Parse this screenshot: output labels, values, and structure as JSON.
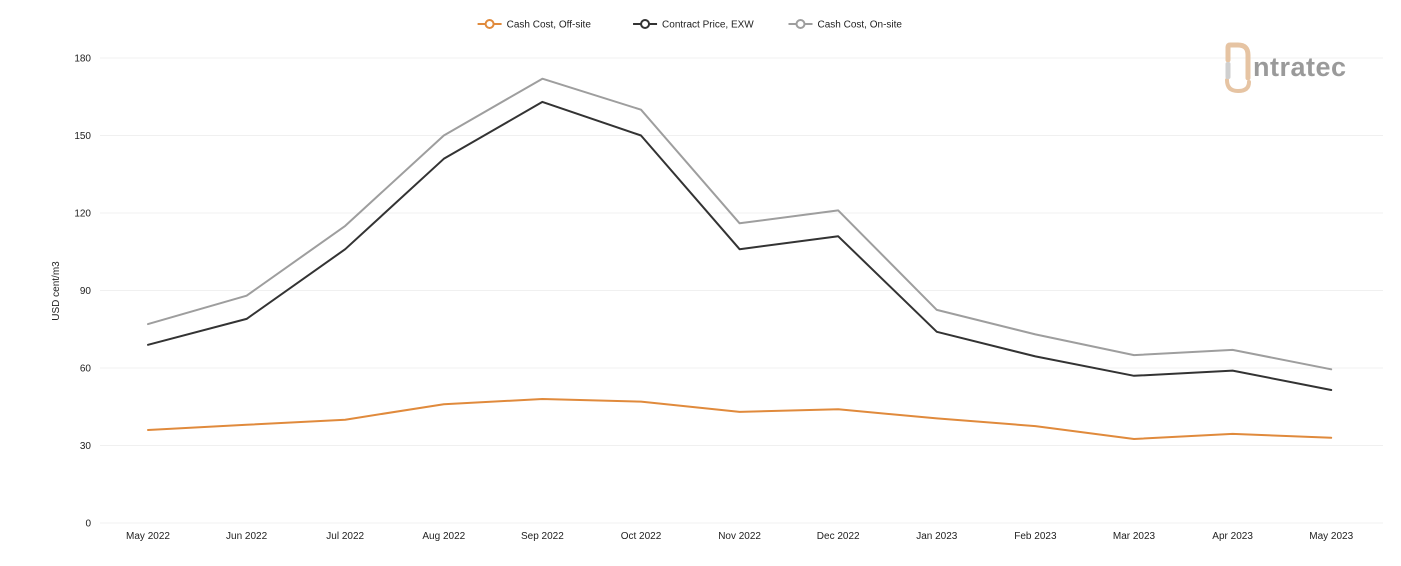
{
  "chart_data": {
    "type": "line",
    "title": "",
    "xlabel": "",
    "ylabel": "USD cent/m3",
    "ylim": [
      0,
      180
    ],
    "yticks": [
      0,
      30,
      60,
      90,
      120,
      150,
      180
    ],
    "grid": true,
    "legend_position": "top-center",
    "categories": [
      "May 2022",
      "Jun 2022",
      "Jul 2022",
      "Aug 2022",
      "Sep 2022",
      "Oct 2022",
      "Nov 2022",
      "Dec 2022",
      "Jan 2023",
      "Feb 2023",
      "Mar 2023",
      "Apr 2023",
      "May 2023"
    ],
    "series": [
      {
        "name": "Cash Cost, Off-site",
        "color": "#e08a3c",
        "values": [
          36,
          38,
          40,
          46,
          48,
          47,
          43,
          44,
          40.5,
          37.5,
          32.5,
          34.5,
          33
        ]
      },
      {
        "name": "Contract Price, EXW",
        "color": "#333333",
        "values": [
          69,
          79,
          106,
          141,
          163,
          150,
          106,
          111,
          74,
          64.5,
          57,
          59,
          51.5
        ]
      },
      {
        "name": "Cash Cost, On-site",
        "color": "#9e9e9e",
        "values": [
          77,
          88,
          115,
          150,
          172,
          160,
          116,
          121,
          82.5,
          73,
          65,
          67,
          59.5
        ]
      }
    ]
  },
  "logo": {
    "text": "ntratec",
    "name": "intratec",
    "icon_color": "#e6c4a3",
    "text_color": "#9a9a9a"
  }
}
